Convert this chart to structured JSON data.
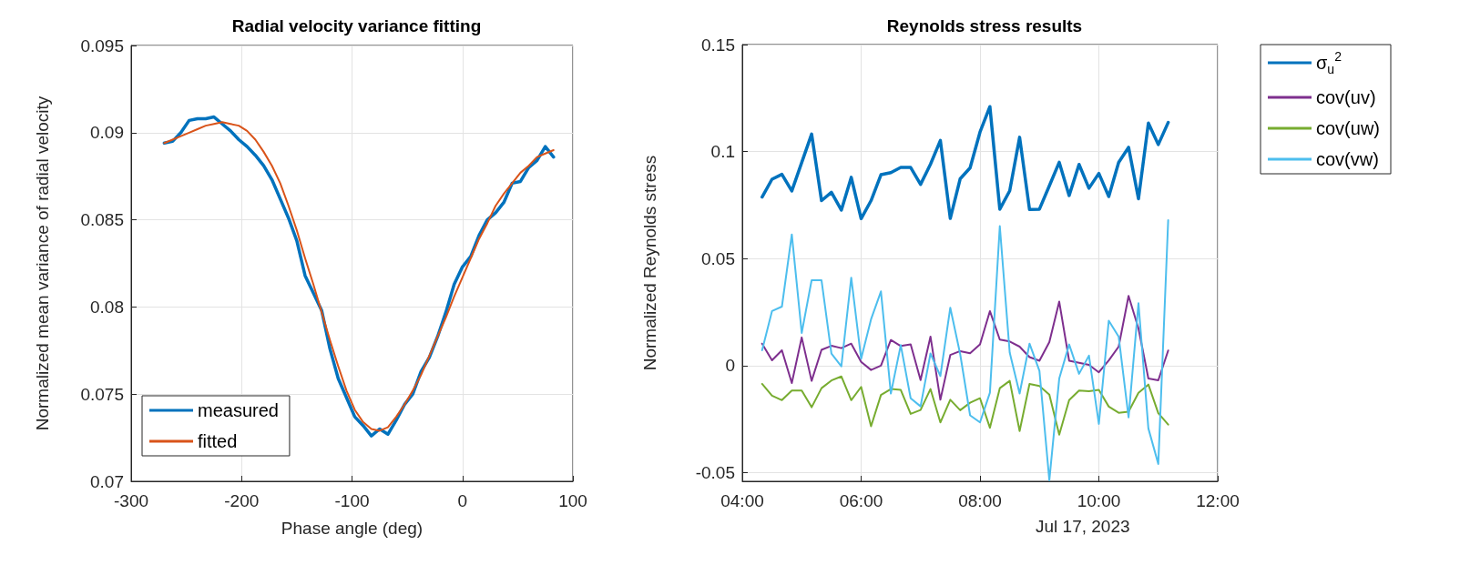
{
  "chart_data": [
    {
      "type": "line",
      "title": "Radial velocity variance fitting",
      "xlabel": "Phase angle (deg)",
      "ylabel": "Normalized mean variance of radial velocity",
      "x": [
        -270,
        -262.5,
        -255,
        -247.5,
        -240,
        -232.5,
        -225,
        -217.5,
        -210,
        -202.5,
        -195,
        -187.5,
        -180,
        -172.5,
        -165,
        -157.5,
        -150,
        -142.5,
        -135,
        -127.5,
        -120,
        -112.5,
        -105,
        -97.5,
        -90,
        -82.5,
        -75,
        -67.5,
        -60,
        -52.5,
        -45,
        -37.5,
        -30,
        -22.5,
        -15,
        -7.5,
        0,
        7.5,
        15,
        22.5,
        30,
        37.5,
        45,
        52.5,
        60,
        67.5,
        75,
        82.5
      ],
      "series": [
        {
          "name": "measured",
          "color": "#0072bd",
          "values": [
            0.0894,
            0.0895,
            0.09,
            0.0907,
            0.0908,
            0.0908,
            0.0909,
            0.0905,
            0.0901,
            0.0896,
            0.0892,
            0.0887,
            0.0881,
            0.0873,
            0.0862,
            0.0851,
            0.0838,
            0.0818,
            0.0808,
            0.0798,
            0.0776,
            0.0759,
            0.0748,
            0.0737,
            0.0732,
            0.0726,
            0.073,
            0.0727,
            0.0735,
            0.0744,
            0.075,
            0.0763,
            0.0771,
            0.0783,
            0.0797,
            0.0813,
            0.0823,
            0.0829,
            0.0841,
            0.085,
            0.0854,
            0.086,
            0.0871,
            0.0872,
            0.088,
            0.0884,
            0.0892,
            0.0886
          ]
        },
        {
          "name": "fitted",
          "color": "#d95319",
          "values": [
            0.0894,
            0.0896,
            0.0898,
            0.09,
            0.0902,
            0.0904,
            0.0905,
            0.0906,
            0.0905,
            0.0904,
            0.0901,
            0.0896,
            0.0889,
            0.0881,
            0.0871,
            0.0858,
            0.0844,
            0.0828,
            0.0813,
            0.0797,
            0.0781,
            0.0766,
            0.0752,
            0.0741,
            0.0734,
            0.073,
            0.0729,
            0.0731,
            0.0737,
            0.0744,
            0.0752,
            0.0761,
            0.0772,
            0.0783,
            0.0794,
            0.0806,
            0.0817,
            0.0828,
            0.0839,
            0.0848,
            0.0858,
            0.0865,
            0.0871,
            0.0877,
            0.0881,
            0.0886,
            0.0888,
            0.089
          ]
        }
      ],
      "xlim": [
        -300,
        100
      ],
      "xticks": [
        -300,
        -200,
        -100,
        0,
        100
      ],
      "ylim": [
        0.07,
        0.095
      ],
      "yticks": [
        0.07,
        0.075,
        0.08,
        0.085,
        0.09,
        0.095
      ],
      "grid": true,
      "legend": "bottom left",
      "marker": "none",
      "line_style": "solid"
    },
    {
      "type": "line",
      "title": "Reynolds stress results",
      "ylabel": "Normalized Reynolds stress",
      "annotations": [
        "Jul 17, 2023"
      ],
      "x": [
        4.3333,
        4.5,
        4.6667,
        4.8333,
        5,
        5.1667,
        5.3333,
        5.5,
        5.6667,
        5.8333,
        6,
        6.1667,
        6.3333,
        6.5,
        6.6667,
        6.8333,
        7,
        7.1667,
        7.3333,
        7.5,
        7.6667,
        7.8333,
        8,
        8.1667,
        8.3333,
        8.5,
        8.6667,
        8.8333,
        9,
        9.1667,
        9.3333,
        9.5,
        9.6667,
        9.8333,
        10,
        10.1667,
        10.3333,
        10.5,
        10.6667,
        10.8333,
        11,
        11.1667
      ],
      "series": [
        {
          "name": "σ$_{u}$$^{2}$",
          "color": "#0072bd",
          "values": [
            0.0788,
            0.0871,
            0.0894,
            0.0816,
            0.0949,
            0.1082,
            0.0771,
            0.081,
            0.0727,
            0.088,
            0.0687,
            0.0771,
            0.0892,
            0.0902,
            0.0926,
            0.0926,
            0.0847,
            0.0941,
            0.1052,
            0.0688,
            0.0873,
            0.0924,
            0.1091,
            0.121,
            0.0731,
            0.0817,
            0.1067,
            0.073,
            0.0731,
            0.084,
            0.095,
            0.0795,
            0.094,
            0.0829,
            0.0898,
            0.079,
            0.095,
            0.102,
            0.078,
            0.1133,
            0.1033,
            0.1136
          ]
        },
        {
          "name": "cov(uv)",
          "color": "#7e2f8e",
          "values": [
            0.0103,
            0.0025,
            0.0072,
            -0.0081,
            0.0132,
            -0.0071,
            0.0074,
            0.0093,
            0.0082,
            0.0103,
            0.0018,
            -0.002,
            0,
            0.012,
            0.0092,
            0.01,
            -0.0067,
            0.0136,
            -0.0159,
            0.005,
            0.0068,
            0.0058,
            0.01,
            0.0255,
            0.0122,
            0.0113,
            0.0089,
            0.004,
            0.0023,
            0.011,
            0.0299,
            0.0023,
            0.0014,
            0.0004,
            -0.0031,
            0.0025,
            0.0089,
            0.0326,
            0.0174,
            -0.006,
            -0.0068,
            0.0071
          ]
        },
        {
          "name": "cov(uw)",
          "color": "#77ac30",
          "values": [
            -0.0085,
            -0.014,
            -0.0161,
            -0.0116,
            -0.0116,
            -0.0194,
            -0.0105,
            -0.0069,
            -0.005,
            -0.0161,
            -0.0099,
            -0.0283,
            -0.0137,
            -0.0109,
            -0.0113,
            -0.0225,
            -0.0207,
            -0.0109,
            -0.0265,
            -0.0159,
            -0.0208,
            -0.0173,
            -0.0152,
            -0.029,
            -0.0105,
            -0.0071,
            -0.0305,
            -0.0085,
            -0.0095,
            -0.0135,
            -0.0322,
            -0.0161,
            -0.0116,
            -0.0119,
            -0.0113,
            -0.0191,
            -0.022,
            -0.0215,
            -0.0127,
            -0.0088,
            -0.0222,
            -0.0275
          ]
        },
        {
          "name": "cov(vw)",
          "color": "#4dbeee",
          "values": [
            0.0072,
            0.0255,
            0.0276,
            0.0613,
            0.0153,
            0.0399,
            0.0399,
            0.0057,
            -0.0003,
            0.0411,
            0.0033,
            0.0217,
            0.0347,
            -0.013,
            0.0096,
            -0.0152,
            -0.019,
            0.0057,
            -0.0048,
            0.0271,
            0.0054,
            -0.0232,
            -0.0265,
            -0.0126,
            0.0652,
            0.0061,
            -0.013,
            0.0103,
            -0.0024,
            -0.0535,
            -0.006,
            0.0099,
            -0.0038,
            0.0047,
            -0.0272,
            0.021,
            0.0136,
            -0.0241,
            0.0292,
            -0.0293,
            -0.0459,
            0.068
          ]
        }
      ],
      "xlim": [
        4,
        12
      ],
      "xticks": [
        {
          "value": 4,
          "label": "04:00"
        },
        {
          "value": 6,
          "label": "06:00"
        },
        {
          "value": 8,
          "label": "08:00"
        },
        {
          "value": 10,
          "label": "10:00"
        },
        {
          "value": 12,
          "label": "12:00"
        }
      ],
      "ylim": [
        -0.054,
        0.15
      ],
      "yticks": [
        -0.05,
        0,
        0.05,
        0.1,
        0.15
      ],
      "grid": true,
      "legend": "top right",
      "marker": "none",
      "line_style": "solid"
    }
  ]
}
